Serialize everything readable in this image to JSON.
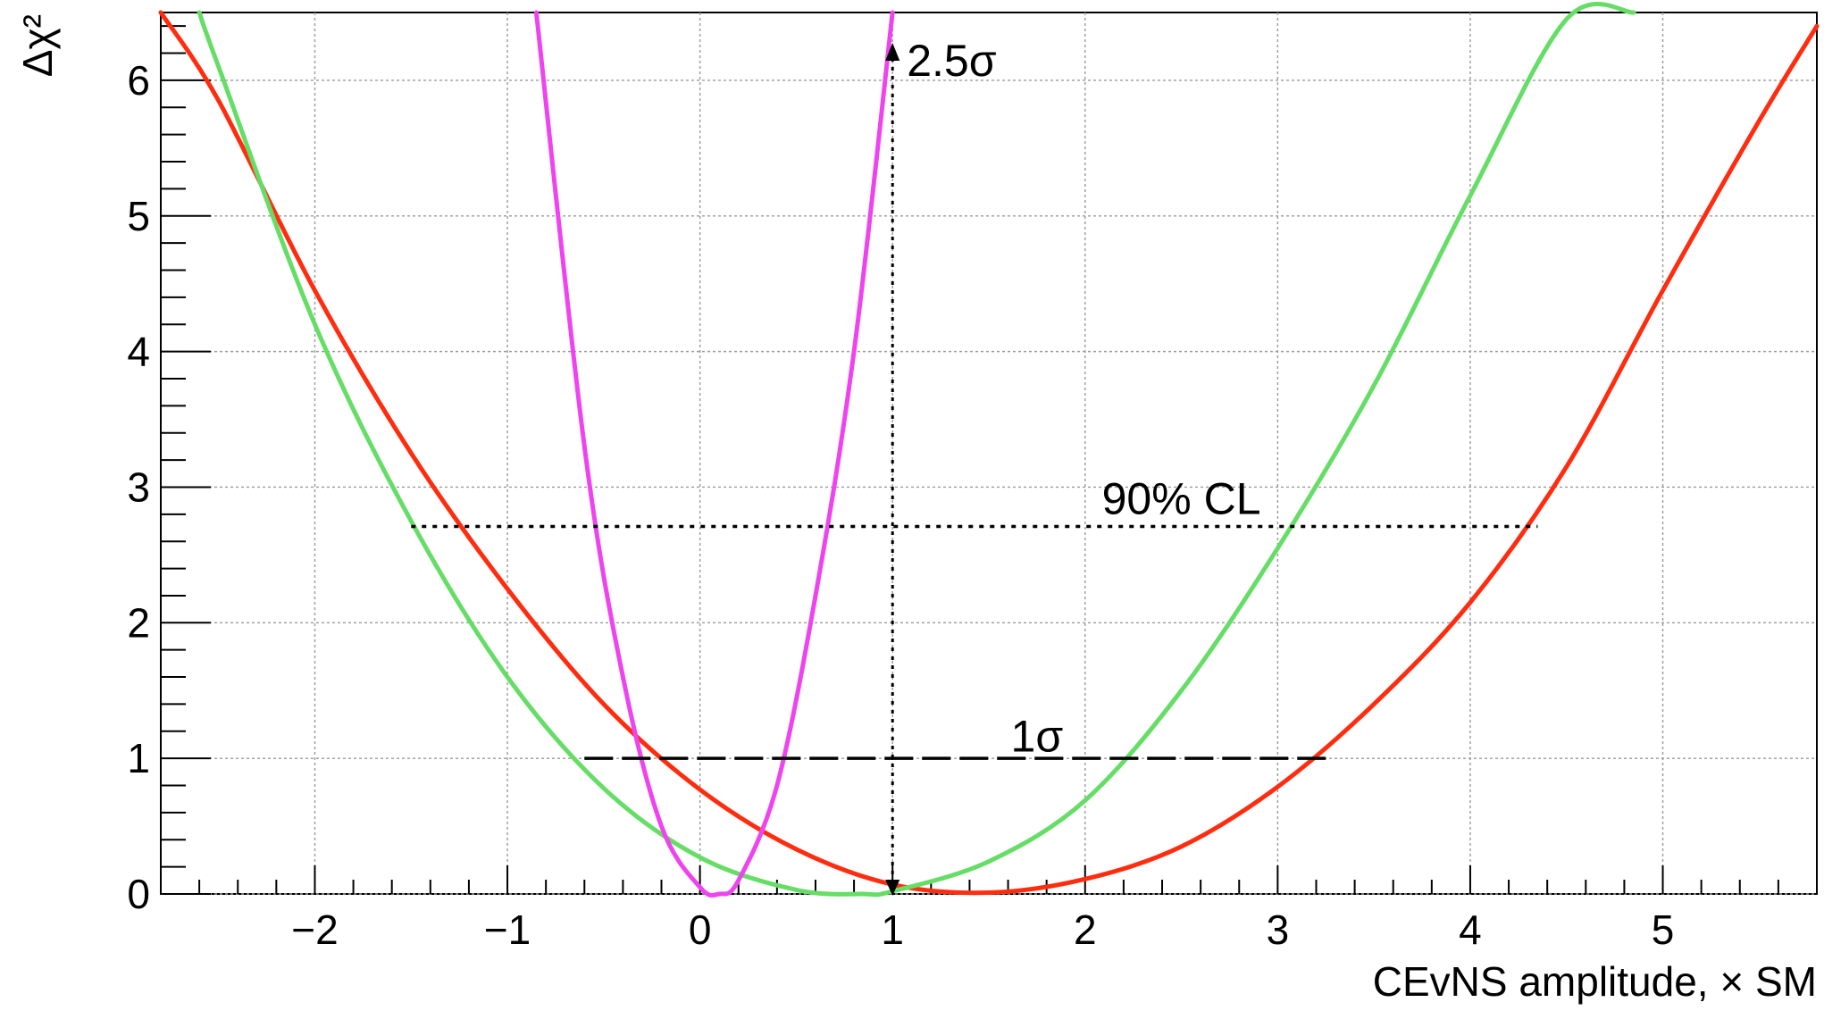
{
  "chart_data": {
    "type": "line",
    "xlabel": "CEvNS amplitude, × SM",
    "ylabel": "Δχ²",
    "xlim": [
      -2.8,
      5.8
    ],
    "ylim": [
      0,
      6.5
    ],
    "xticks": [
      -2,
      -1,
      0,
      1,
      2,
      3,
      4,
      5
    ],
    "xtick_labels": [
      "−2",
      "−1",
      "0",
      "1",
      "2",
      "3",
      "4",
      "5"
    ],
    "yticks": [
      0,
      1,
      2,
      3,
      4,
      5,
      6
    ],
    "ytick_labels": [
      "0",
      "1",
      "2",
      "3",
      "4",
      "5",
      "6"
    ],
    "grid": true,
    "series": [
      {
        "color": "#ff2d10",
        "x": [
          -2.8,
          -2.5,
          -2.0,
          -1.5,
          -1.0,
          -0.5,
          0.0,
          0.5,
          1.0,
          1.5,
          2.0,
          2.5,
          3.0,
          3.5,
          4.0,
          4.5,
          5.0,
          5.5,
          5.8
        ],
        "y": [
          6.5,
          5.85,
          4.45,
          3.25,
          2.25,
          1.4,
          0.77,
          0.33,
          0.07,
          0.01,
          0.11,
          0.35,
          0.79,
          1.4,
          2.15,
          3.15,
          4.45,
          5.7,
          6.4
        ]
      },
      {
        "color": "#66dd66",
        "x": [
          -2.6,
          -2.5,
          -2.0,
          -1.5,
          -1.0,
          -0.5,
          0.0,
          0.5,
          0.85,
          1.0,
          1.5,
          2.0,
          2.5,
          3.0,
          3.5,
          4.0,
          4.5,
          4.85
        ],
        "y": [
          6.5,
          6.1,
          4.2,
          2.75,
          1.6,
          0.78,
          0.27,
          0.03,
          0.0,
          0.02,
          0.24,
          0.69,
          1.5,
          2.55,
          3.75,
          5.15,
          6.45,
          6.5
        ]
      },
      {
        "color": "#ee44ee",
        "x": [
          -0.85,
          -0.6,
          -0.4,
          -0.2,
          0.0,
          0.1,
          0.2,
          0.4,
          0.6,
          0.8,
          1.0
        ],
        "y": [
          6.5,
          3.3,
          1.6,
          0.5,
          0.05,
          0.0,
          0.1,
          0.8,
          2.2,
          4.0,
          6.5
        ]
      }
    ],
    "annotations": [
      {
        "text": "2.5σ",
        "x": 1.0,
        "y": 6.15
      },
      {
        "text": "90% CL",
        "x": 2.5,
        "y": 2.92
      },
      {
        "text": "1σ",
        "x": 1.75,
        "y": 1.17
      }
    ],
    "reference_lines": [
      {
        "label": "90% CL",
        "style": "dotted",
        "y": 2.71,
        "x_from": -1.5,
        "x_to": 4.35
      },
      {
        "label": "1σ",
        "style": "dashed",
        "y": 1.0,
        "x_from": -0.6,
        "x_to": 3.25
      }
    ],
    "arrow": {
      "style": "dotted",
      "x": 1.0,
      "y_from": 0.0,
      "y_to": 6.25
    }
  }
}
